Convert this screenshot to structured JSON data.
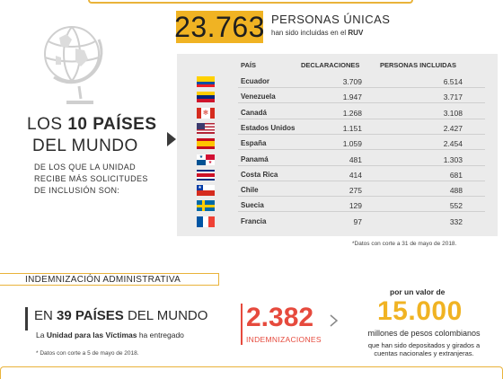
{
  "header": {
    "big_number": "23.763",
    "title": "PERSONAS ÚNICAS",
    "subtitle_prefix": "han sido incluidas en el ",
    "subtitle_bold": "RUV"
  },
  "left": {
    "title_prefix": "LOS ",
    "title_bold": "10 PAÍSES",
    "title_line2": "DEL MUNDO",
    "description": "DE LOS QUE LA UNIDAD RECIBE MÁS SOLICITUDES DE INCLUSIÓN SON:"
  },
  "table": {
    "headers": {
      "country": "PAÍS",
      "declarations": "DECLARACIONES",
      "persons": "PERSONAS INCLUIDAS"
    },
    "rows": [
      {
        "country": "Ecuador",
        "declarations": "3.709",
        "persons": "6.514",
        "flag": "ecuador"
      },
      {
        "country": "Venezuela",
        "declarations": "1.947",
        "persons": "3.717",
        "flag": "venezuela"
      },
      {
        "country": "Canadá",
        "declarations": "1.268",
        "persons": "3.108",
        "flag": "canada"
      },
      {
        "country": "Estados Unidos",
        "declarations": "1.151",
        "persons": "2.427",
        "flag": "usa"
      },
      {
        "country": "España",
        "declarations": "1.059",
        "persons": "2.454",
        "flag": "spain"
      },
      {
        "country": "Panamá",
        "declarations": "481",
        "persons": "1.303",
        "flag": "panama"
      },
      {
        "country": "Costa Rica",
        "declarations": "414",
        "persons": "681",
        "flag": "costa-rica"
      },
      {
        "country": "Chile",
        "declarations": "275",
        "persons": "488",
        "flag": "chile"
      },
      {
        "country": "Suecia",
        "declarations": "129",
        "persons": "552",
        "flag": "sweden"
      },
      {
        "country": "Francia",
        "declarations": "97",
        "persons": "332",
        "flag": "france"
      }
    ],
    "note": "*Datos con corte a 31 de mayo de 2018."
  },
  "indemnizacion": {
    "section_title": "INDEMNIZACIÓN ADMINISTRATIVA",
    "en_prefix": "EN ",
    "en_bold": "39 PAÍSES",
    "en_suffix": " DEL MUNDO",
    "unidad_prefix": "La ",
    "unidad_bold": "Unidad para las Víctimas",
    "unidad_suffix": " ha entregado",
    "note": "* Datos con corte a 5 de mayo de 2018.",
    "count": "2.382",
    "count_label": "INDEMNIZACIONES",
    "por_un_valor": "por un valor de",
    "amount": "15.000",
    "millones": "millones de pesos colombianos",
    "deposit_line1": "que han sido depositados y girados a",
    "deposit_line2": "cuentas nacionales y extranjeras."
  },
  "colors": {
    "gold": "#f0b323",
    "red": "#e64a3d",
    "panel": "#ebebeb"
  }
}
